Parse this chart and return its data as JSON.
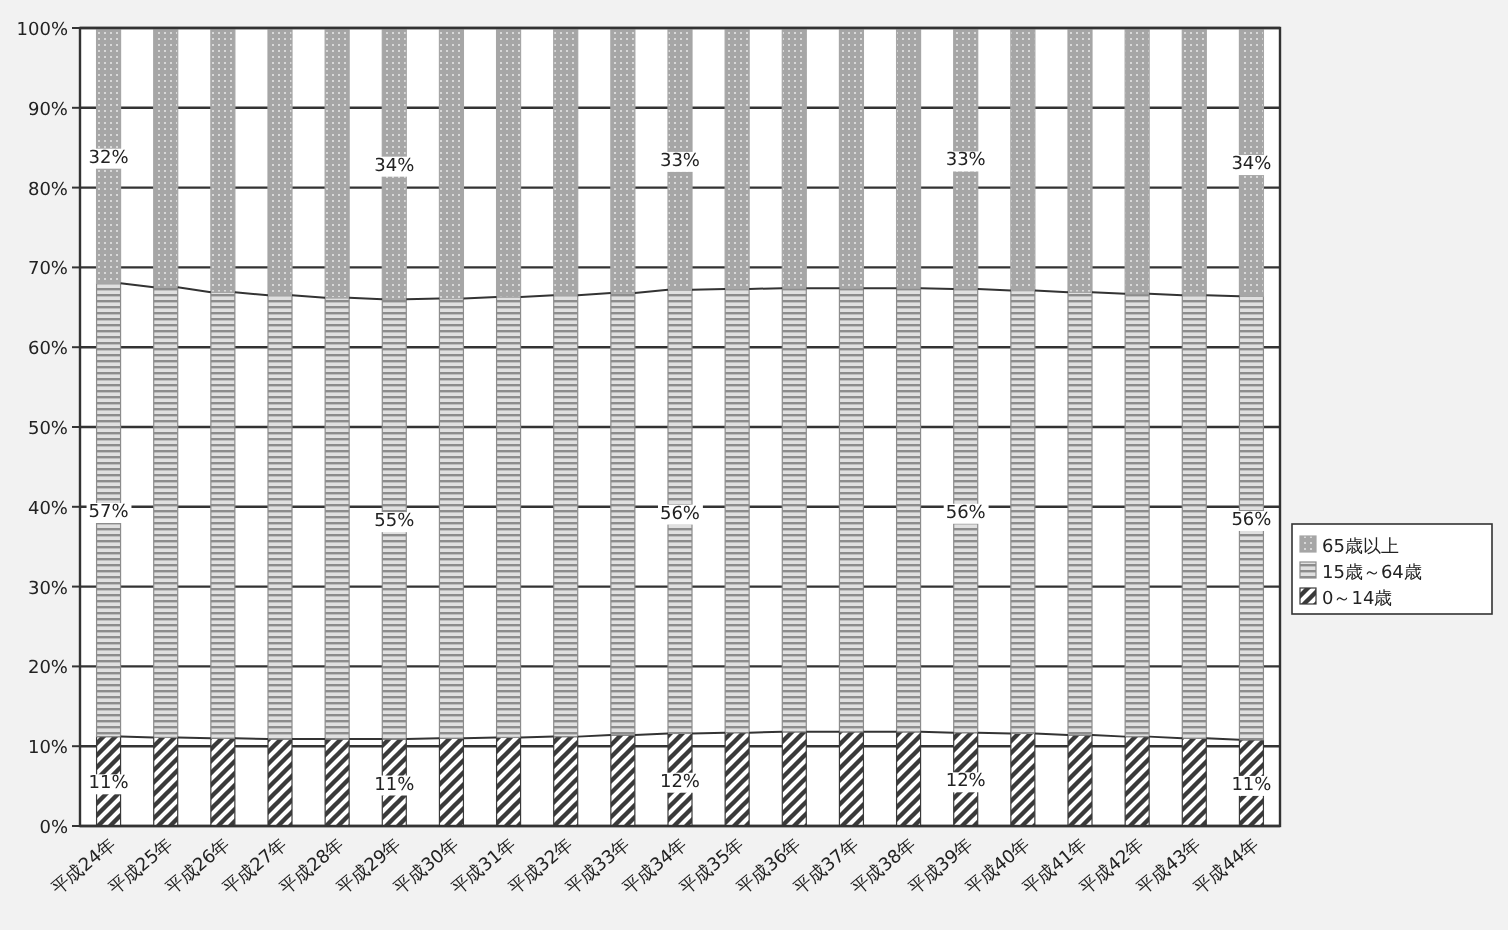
{
  "chart_data": {
    "type": "bar",
    "stacked": true,
    "categories": [
      "平成24年",
      "平成25年",
      "平成26年",
      "平成27年",
      "平成28年",
      "平成29年",
      "平成30年",
      "平成31年",
      "平成32年",
      "平成33年",
      "平成34年",
      "平成35年",
      "平成36年",
      "平成37年",
      "平成38年",
      "平成39年",
      "平成40年",
      "平成41年",
      "平成42年",
      "平成43年",
      "平成44年"
    ],
    "series": [
      {
        "name": "0～14歳",
        "color": "#3a3a3a",
        "values": [
          11.2,
          11.1,
          11.0,
          10.9,
          10.9,
          10.9,
          11.0,
          11.1,
          11.2,
          11.4,
          11.6,
          11.7,
          11.8,
          11.8,
          11.8,
          11.7,
          11.6,
          11.4,
          11.2,
          11.0,
          10.8
        ],
        "value_labels": [
          "11%",
          null,
          null,
          null,
          null,
          "11%",
          null,
          null,
          null,
          null,
          "12%",
          null,
          null,
          null,
          null,
          "12%",
          null,
          null,
          null,
          null,
          "11%"
        ]
      },
      {
        "name": "15歳～64歳",
        "color": "#8c8c8c",
        "values": [
          56.8,
          56.4,
          55.9,
          55.6,
          55.3,
          55.1,
          55.1,
          55.2,
          55.3,
          55.4,
          55.6,
          55.6,
          55.6,
          55.6,
          55.6,
          55.6,
          55.5,
          55.5,
          55.5,
          55.5,
          55.6
        ],
        "value_labels": [
          "57%",
          null,
          null,
          null,
          null,
          "55%",
          null,
          null,
          null,
          null,
          "56%",
          null,
          null,
          null,
          null,
          "56%",
          null,
          null,
          null,
          null,
          "56%"
        ]
      },
      {
        "name": "65歳以上",
        "color": "#a6a6a6",
        "values": [
          32.0,
          32.5,
          33.1,
          33.5,
          33.8,
          34.0,
          33.9,
          33.7,
          33.5,
          33.2,
          32.8,
          32.7,
          32.6,
          32.6,
          32.6,
          32.7,
          32.9,
          33.1,
          33.3,
          33.5,
          33.6
        ],
        "value_labels": [
          "32%",
          null,
          null,
          null,
          null,
          "34%",
          null,
          null,
          null,
          null,
          "33%",
          null,
          null,
          null,
          null,
          "33%",
          null,
          null,
          null,
          null,
          "34%"
        ]
      }
    ],
    "ylim": [
      0,
      100
    ],
    "yticks": [
      {
        "value": 0,
        "label": "0%"
      },
      {
        "value": 10,
        "label": "10%"
      },
      {
        "value": 20,
        "label": "20%"
      },
      {
        "value": 30,
        "label": "30%"
      },
      {
        "value": 40,
        "label": "40%"
      },
      {
        "value": 50,
        "label": "50%"
      },
      {
        "value": 60,
        "label": "60%"
      },
      {
        "value": 70,
        "label": "70%"
      },
      {
        "value": 80,
        "label": "80%"
      },
      {
        "value": 90,
        "label": "90%"
      },
      {
        "value": 100,
        "label": "100%"
      }
    ],
    "grid": "y",
    "legend": "right"
  }
}
